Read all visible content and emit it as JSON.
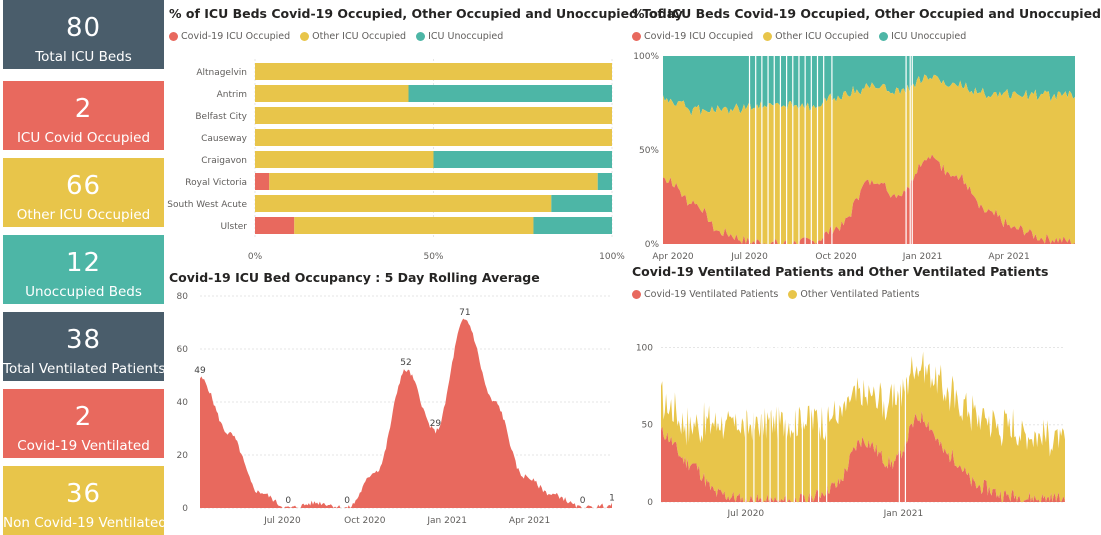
{
  "colors": {
    "covid": "#e8695e",
    "other": "#e8c54a",
    "unocc": "#4db6a6",
    "dark": "#4a5d6b"
  },
  "cards": [
    {
      "value": "80",
      "label": "Total ICU Beds",
      "color": "#4a5d6b"
    },
    {
      "value": "2",
      "label": "ICU Covid Occupied",
      "color": "#e8695e"
    },
    {
      "value": "66",
      "label": "Other ICU Occupied",
      "color": "#e8c54a"
    },
    {
      "value": "12",
      "label": "Unoccupied Beds",
      "color": "#4db6a6"
    },
    {
      "value": "38",
      "label": "Total Ventilated Patients",
      "color": "#4a5d6b"
    },
    {
      "value": "2",
      "label": "Covid-19 Ventilated",
      "color": "#e8695e"
    },
    {
      "value": "36",
      "label": "Non Covid-19 Ventilated",
      "color": "#e8c54a"
    }
  ],
  "chart_data": [
    {
      "type": "bar",
      "orientation": "horizontal-stacked-100",
      "title": "% of ICU Beds Covid-19 Occupied, Other Occupied and Unoccupied Today",
      "categories": [
        "Altnagelvin",
        "Antrim",
        "Belfast City",
        "Causeway",
        "Craigavon",
        "Royal Victoria",
        "South West Acute",
        "Ulster"
      ],
      "series": [
        {
          "name": "Covid-19 ICU Occupied",
          "values": [
            0,
            0,
            0,
            0,
            0,
            4,
            0,
            11
          ]
        },
        {
          "name": "Other ICU Occupied",
          "values": [
            100,
            43,
            100,
            100,
            50,
            92,
            83,
            67
          ]
        },
        {
          "name": "ICU Unoccupied",
          "values": [
            0,
            57,
            0,
            0,
            50,
            4,
            17,
            22
          ]
        }
      ],
      "xticks": [
        "0%",
        "50%",
        "100%"
      ],
      "xlim": [
        0,
        100
      ]
    },
    {
      "type": "area",
      "stacking": "100%",
      "title": "% of ICU Beds Covid-19 Occupied, Other Occupied and Unoccupied",
      "legend": [
        "Covid-19 ICU Occupied",
        "Other ICU Occupied",
        "ICU Unoccupied"
      ],
      "x": [
        "Apr 2020",
        "May 2020",
        "Jun 2020",
        "Jul 2020",
        "Aug 2020",
        "Sep 2020",
        "Oct 2020",
        "Nov 2020",
        "Dec 2020",
        "Jan 2021",
        "Feb 2021",
        "Mar 2021",
        "Apr 2021",
        "May 2021",
        "Jun 2021"
      ],
      "series": [
        {
          "name": "Covid-19 ICU Occupied",
          "values": [
            36,
            22,
            6,
            1,
            0,
            1,
            9,
            34,
            26,
            45,
            36,
            17,
            8,
            3,
            1
          ]
        },
        {
          "name": "Other ICU Occupied",
          "values": [
            42,
            50,
            65,
            72,
            74,
            72,
            70,
            50,
            56,
            44,
            48,
            63,
            72,
            76,
            78
          ]
        },
        {
          "name": "ICU Unoccupied",
          "values": [
            22,
            28,
            29,
            27,
            26,
            27,
            21,
            16,
            18,
            11,
            16,
            20,
            20,
            21,
            21
          ]
        }
      ],
      "xticks": [
        "Apr 2020",
        "Jul 2020",
        "Oct 2020",
        "Jan 2021",
        "Apr 2021"
      ],
      "yticks": [
        "0%",
        "50%",
        "100%"
      ],
      "ylim": [
        0,
        100
      ]
    },
    {
      "type": "area",
      "title": "Covid-19 ICU Bed Occupancy : 5 Day Rolling Average",
      "x": [
        "Apr 2020",
        "May 2020",
        "Jun 2020",
        "Jul 2020",
        "Aug 2020",
        "Sep 2020",
        "Oct 2020",
        "Nov 2020",
        "Dec 2020",
        "Jan 2021",
        "Feb 2021",
        "Mar 2021",
        "Apr 2021",
        "May 2021",
        "Jun 2021"
      ],
      "values": [
        49,
        28,
        6,
        0,
        2,
        0,
        14,
        52,
        29,
        71,
        40,
        12,
        5,
        0,
        1
      ],
      "data_labels": [
        {
          "x": "Apr 2020",
          "label": "49"
        },
        {
          "x": "Jul 2020",
          "label": "0"
        },
        {
          "x": "Sep 2020",
          "label": "0"
        },
        {
          "x": "Nov 2020",
          "label": "52"
        },
        {
          "x": "Dec 2020",
          "label": "29"
        },
        {
          "x": "Jan 2021",
          "label": "71"
        },
        {
          "x": "May 2021",
          "label": "0"
        },
        {
          "x": "Jun 2021",
          "label": "1"
        }
      ],
      "xticks": [
        "Jul 2020",
        "Oct 2020",
        "Jan 2021",
        "Apr 2021"
      ],
      "yticks": [
        "0",
        "20",
        "40",
        "60",
        "80"
      ],
      "ylim": [
        0,
        80
      ]
    },
    {
      "type": "area",
      "stacking": "stacked",
      "title": "Covid-19 Ventilated Patients and Other Ventilated Patients",
      "x": [
        "Apr 2020",
        "May 2020",
        "Jun 2020",
        "Jul 2020",
        "Aug 2020",
        "Sep 2020",
        "Oct 2020",
        "Nov 2020",
        "Dec 2020",
        "Jan 2021",
        "Feb 2021",
        "Mar 2021",
        "Apr 2021",
        "May 2021",
        "Jun 2021"
      ],
      "series": [
        {
          "name": "Covid-19 Ventilated Patients",
          "values": [
            45,
            25,
            5,
            1,
            0,
            1,
            10,
            40,
            25,
            55,
            30,
            10,
            4,
            2,
            2
          ]
        },
        {
          "name": "Other Ventilated Patients",
          "values": [
            20,
            25,
            45,
            48,
            50,
            52,
            45,
            30,
            40,
            35,
            40,
            45,
            45,
            42,
            36
          ]
        }
      ],
      "xticks": [
        "Jul 2020",
        "Jan 2021"
      ],
      "yticks": [
        "0",
        "50",
        "100"
      ],
      "ylim": [
        0,
        110
      ]
    }
  ]
}
